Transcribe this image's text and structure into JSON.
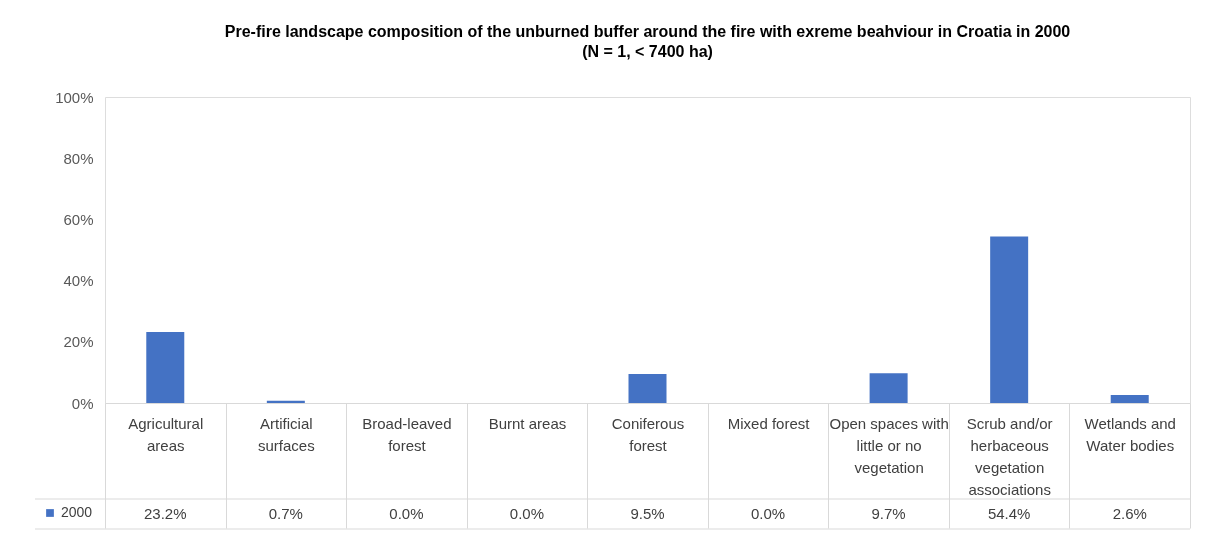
{
  "chart_data": {
    "type": "bar",
    "title": "Pre-fire landscape composition of the unburned buffer around the fire with exreme beahviour in Croatia in 2000",
    "subtitle": "(N = 1, < 7400 ha)",
    "categories": [
      "Agricultural areas",
      "Artificial surfaces",
      "Broad-leaved forest",
      "Burnt areas",
      "Coniferous forest",
      "Mixed forest",
      "Open spaces with little or no vegetation",
      "Scrub and/or herbaceous vegetation associations",
      "Wetlands and Water bodies"
    ],
    "series": [
      {
        "name": "2000",
        "color": "#4472c4",
        "values": [
          23.2,
          0.7,
          0.0,
          0.0,
          9.5,
          0.0,
          9.7,
          54.4,
          2.6
        ],
        "value_labels": [
          "23.2%",
          "0.7%",
          "0.0%",
          "0.0%",
          "9.5%",
          "0.0%",
          "9.7%",
          "54.4%",
          "2.6%"
        ]
      }
    ],
    "ylim": [
      0,
      100
    ],
    "yticks": [
      {
        "value": 0,
        "label": "0%"
      },
      {
        "value": 20,
        "label": "20%"
      },
      {
        "value": 40,
        "label": "40%"
      },
      {
        "value": 60,
        "label": "60%"
      },
      {
        "value": 80,
        "label": "80%"
      },
      {
        "value": 100,
        "label": "100%"
      }
    ],
    "grid": false,
    "legend": "bottom left"
  }
}
